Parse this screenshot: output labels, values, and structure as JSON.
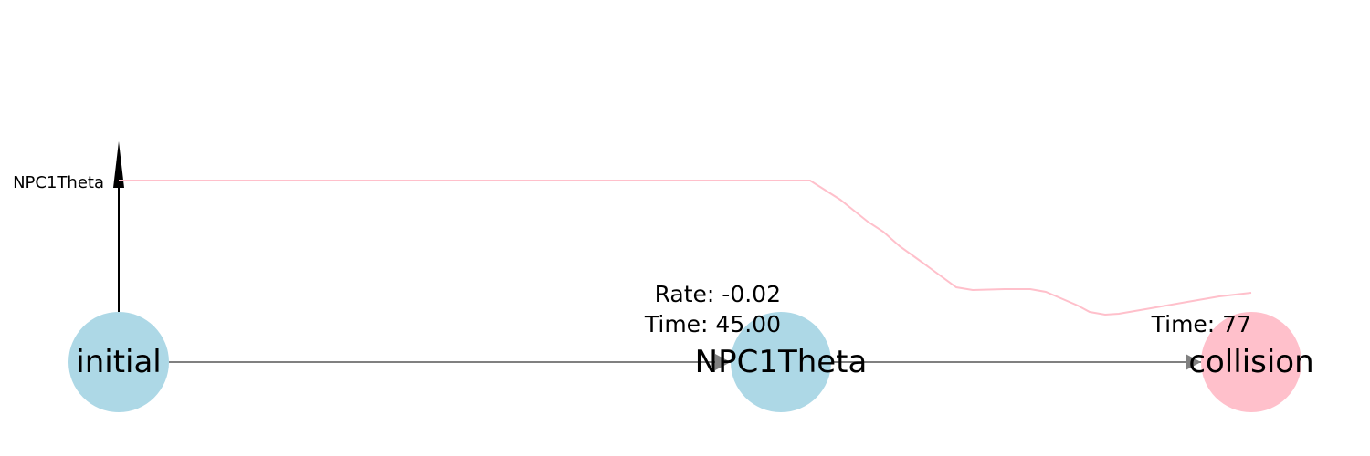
{
  "colors": {
    "blue_node": "#add8e6",
    "pink_node": "#ffc0cb",
    "edge": "#808080",
    "trace": "#ffc0cb",
    "axis": "#000000"
  },
  "nodes": [
    {
      "id": "initial",
      "label": "initial",
      "color": "#add8e6"
    },
    {
      "id": "npc1theta",
      "label": "NPC1Theta",
      "color": "#add8e6"
    },
    {
      "id": "collision",
      "label": "collision",
      "color": "#ffc0cb"
    }
  ],
  "annotations": {
    "npc1theta_rate": "Rate: -0.02",
    "npc1theta_time": "Time: 45.00",
    "collision_time": "Time: 77"
  },
  "axis": {
    "label": "NPC1Theta"
  }
}
